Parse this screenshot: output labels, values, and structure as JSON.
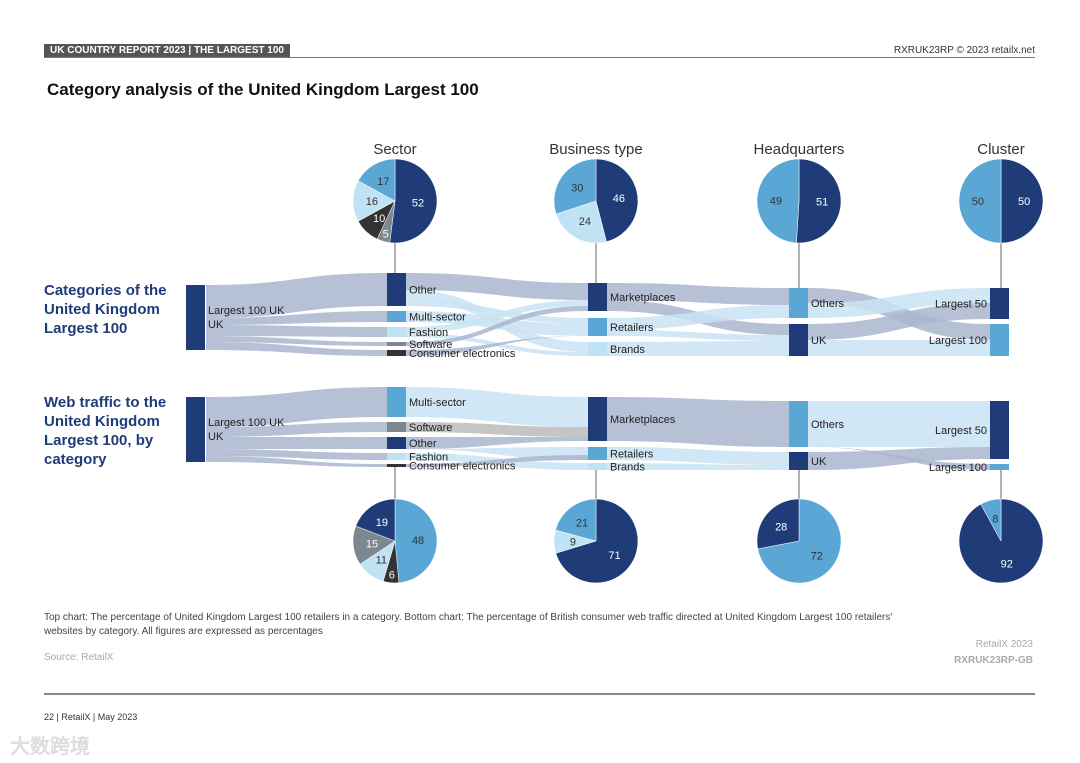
{
  "header": {
    "left": "UK COUNTRY REPORT 2023 | THE LARGEST 100",
    "right": "RXRUK23RP © 2023 retailx.net"
  },
  "title": "Category analysis of the United Kingdom Largest 100",
  "row_labels": [
    "Categories of the United Kingdom Largest 100",
    "Web traffic to the United Kingdom Largest 100, by category"
  ],
  "colors": {
    "navy": "#1f3c78",
    "mid": "#5aa7d6",
    "light": "#bfe3f5",
    "grey": "#7d8790",
    "dark": "#333333",
    "flow": "#a9b6cf",
    "flowlight": "#c9e3f3"
  },
  "chart_data": {
    "type": "sankey+pie",
    "column_titles": [
      "Sector",
      "Business type",
      "Headquarters",
      "Cluster"
    ],
    "top_pies": [
      {
        "title": "Sector",
        "slices": [
          {
            "label": "Other",
            "value": 52,
            "color": "navy"
          },
          {
            "label": "Software",
            "value": 5,
            "color": "grey"
          },
          {
            "label": "Consumer electronics",
            "value": 10,
            "color": "dark"
          },
          {
            "label": "Fashion",
            "value": 16,
            "color": "light"
          },
          {
            "label": "Multi-sector",
            "value": 17,
            "color": "mid"
          }
        ]
      },
      {
        "title": "Business type",
        "slices": [
          {
            "label": "Marketplaces",
            "value": 46,
            "color": "navy"
          },
          {
            "label": "Brands",
            "value": 24,
            "color": "light"
          },
          {
            "label": "Retailers",
            "value": 30,
            "color": "mid"
          }
        ]
      },
      {
        "title": "Headquarters",
        "slices": [
          {
            "label": "UK",
            "value": 51,
            "color": "navy"
          },
          {
            "label": "Others",
            "value": 49,
            "color": "mid"
          }
        ]
      },
      {
        "title": "Cluster",
        "slices": [
          {
            "label": "Largest 50",
            "value": 50,
            "color": "navy"
          },
          {
            "label": "Largest 100",
            "value": 50,
            "color": "mid"
          }
        ]
      }
    ],
    "bottom_pies": [
      {
        "title": "Sector",
        "slices": [
          {
            "label": "Multi-sector",
            "value": 48,
            "color": "mid"
          },
          {
            "label": "Consumer electronics",
            "value": 6,
            "color": "dark"
          },
          {
            "label": "Fashion",
            "value": 11,
            "color": "light"
          },
          {
            "label": "Software",
            "value": 15,
            "color": "grey"
          },
          {
            "label": "Other",
            "value": 19,
            "color": "navy"
          }
        ]
      },
      {
        "title": "Business type",
        "slices": [
          {
            "label": "Marketplaces",
            "value": 71,
            "color": "navy"
          },
          {
            "label": "Brands",
            "value": 9,
            "color": "light"
          },
          {
            "label": "Retailers",
            "value": 21,
            "color": "mid"
          }
        ]
      },
      {
        "title": "Headquarters",
        "slices": [
          {
            "label": "Others",
            "value": 72,
            "color": "mid"
          },
          {
            "label": "UK",
            "value": 28,
            "color": "navy"
          }
        ]
      },
      {
        "title": "Cluster",
        "slices": [
          {
            "label": "Largest 100",
            "value": 92,
            "color": "navy"
          },
          {
            "label": "Largest 50",
            "value": 8,
            "color": "mid"
          }
        ]
      }
    ],
    "top_sankey_nodes": {
      "source": "Largest 100 UK",
      "sector": [
        "Other",
        "Multi-sector",
        "Fashion",
        "Software",
        "Consumer electronics"
      ],
      "business": [
        "Marketplaces",
        "Retailers",
        "Brands"
      ],
      "hq": [
        "Others",
        "UK"
      ],
      "cluster": [
        "Largest 50",
        "Largest 100"
      ]
    },
    "bottom_sankey_nodes": {
      "source": "Largest 100 UK",
      "sector": [
        "Multi-sector",
        "Software",
        "Other",
        "Fashion",
        "Consumer electronics"
      ],
      "business": [
        "Marketplaces",
        "Retailers",
        "Brands"
      ],
      "hq": [
        "Others",
        "UK"
      ],
      "cluster": [
        "Largest 50",
        "Largest 100"
      ]
    }
  },
  "footer": {
    "note": "Top chart: The percentage of United Kingdom Largest 100 retailers in a category. Bottom chart: The percentage of British consumer web traffic directed at United Kingdom Largest 100 retailers' websites by category. All figures are expressed as percentages",
    "source": "Source: RetailX",
    "copyright": "RetailX 2023",
    "code": "RXRUK23RP-GB",
    "page": "22 | RetailX | May 2023",
    "watermark": "大数跨境"
  }
}
